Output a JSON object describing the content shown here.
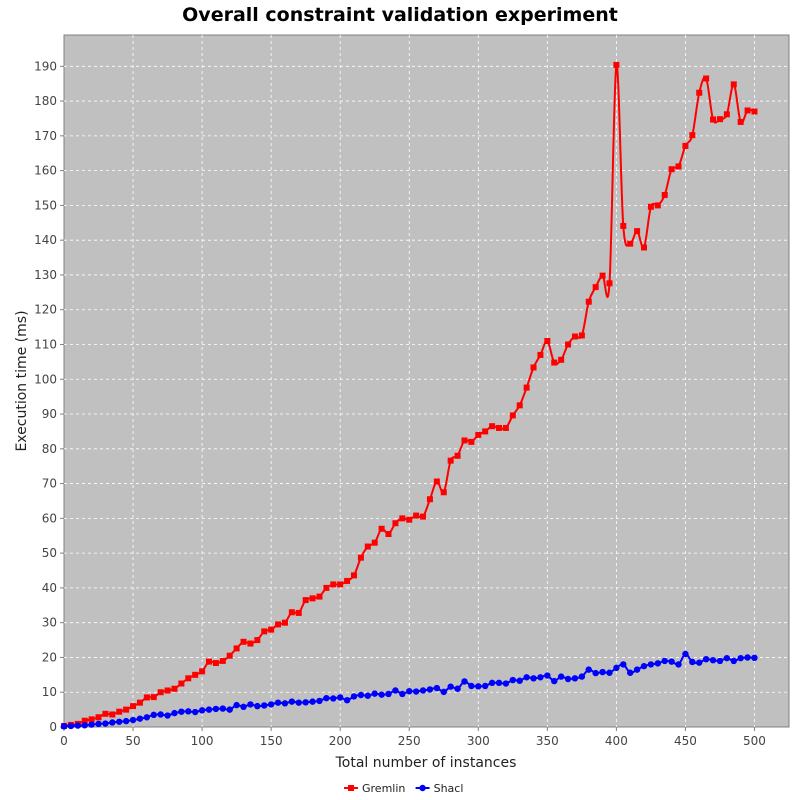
{
  "chart_data": {
    "type": "line",
    "title": "Overall constraint validation experiment",
    "xlabel": "Total number of instances",
    "ylabel": "Execution time (ms)",
    "xlim": [
      0,
      525
    ],
    "ylim": [
      0,
      199
    ],
    "xticks": [
      0,
      50,
      100,
      150,
      200,
      250,
      300,
      350,
      400,
      450,
      500
    ],
    "yticks": [
      0,
      10,
      20,
      30,
      40,
      50,
      60,
      70,
      80,
      90,
      100,
      110,
      120,
      130,
      140,
      150,
      160,
      170,
      180,
      190
    ],
    "grid": true,
    "legend_position": "bottom",
    "plot_background": "#c0c0c0",
    "x": [
      0,
      5,
      10,
      15,
      20,
      25,
      30,
      35,
      40,
      45,
      50,
      55,
      60,
      65,
      70,
      75,
      80,
      85,
      90,
      95,
      100,
      105,
      110,
      115,
      120,
      125,
      130,
      135,
      140,
      145,
      150,
      155,
      160,
      165,
      170,
      175,
      180,
      185,
      190,
      195,
      200,
      205,
      210,
      215,
      220,
      225,
      230,
      235,
      240,
      245,
      250,
      255,
      260,
      265,
      270,
      275,
      280,
      285,
      290,
      295,
      300,
      305,
      310,
      315,
      320,
      325,
      330,
      335,
      340,
      345,
      350,
      355,
      360,
      365,
      370,
      375,
      380,
      385,
      390,
      395,
      400,
      405,
      410,
      415,
      420,
      425,
      430,
      435,
      440,
      445,
      450,
      455,
      460,
      465,
      470,
      475,
      480,
      485,
      490,
      495,
      500
    ],
    "series": [
      {
        "name": "Gremlin",
        "color": "#ff0000",
        "marker": "square",
        "values": [
          0.3,
          0.6,
          0.9,
          1.8,
          2.2,
          2.8,
          3.8,
          3.6,
          4.4,
          5.0,
          6.0,
          7.0,
          8.5,
          8.6,
          10.0,
          10.5,
          11.0,
          12.5,
          14.0,
          15.0,
          16.0,
          18.8,
          18.4,
          19.0,
          20.5,
          22.6,
          24.5,
          24.0,
          25.0,
          27.5,
          28.0,
          29.5,
          30.0,
          33.0,
          32.8,
          36.5,
          37.0,
          37.5,
          40.0,
          41.0,
          41.0,
          42.0,
          43.6,
          48.7,
          51.9,
          53.0,
          57.0,
          55.5,
          58.6,
          60.0,
          59.6,
          60.8,
          60.5,
          65.5,
          70.6,
          67.5,
          76.6,
          78.0,
          82.4,
          82.0,
          84.0,
          85.0,
          86.5,
          86.0,
          86.0,
          89.6,
          92.5,
          97.6,
          103.4,
          107.0,
          111.0,
          104.8,
          105.6,
          110.0,
          112.3,
          112.6,
          122.3,
          126.5,
          129.8,
          127.6,
          190.4,
          144.1,
          139.0,
          142.6,
          137.9,
          149.6,
          150.0,
          153.0,
          160.4,
          161.2,
          167.1,
          170.2,
          182.4,
          186.5,
          174.7,
          174.8,
          176.2,
          184.8,
          174.0,
          177.3,
          177.0
        ]
      },
      {
        "name": "Shacl",
        "color": "#0000ff",
        "marker": "circle",
        "values": [
          0.2,
          0.3,
          0.4,
          0.5,
          0.7,
          0.9,
          1.0,
          1.3,
          1.5,
          1.7,
          2.0,
          2.4,
          2.8,
          3.5,
          3.6,
          3.3,
          4.0,
          4.4,
          4.5,
          4.3,
          4.8,
          5.0,
          5.2,
          5.3,
          5.0,
          6.3,
          5.8,
          6.5,
          6.0,
          6.2,
          6.5,
          7.0,
          6.8,
          7.3,
          7.0,
          7.1,
          7.3,
          7.5,
          8.3,
          8.2,
          8.5,
          7.7,
          8.8,
          9.2,
          9.0,
          9.6,
          9.3,
          9.5,
          10.5,
          9.5,
          10.3,
          10.2,
          10.5,
          10.8,
          11.2,
          10.1,
          11.6,
          11.0,
          13.1,
          11.8,
          11.7,
          11.8,
          12.7,
          12.7,
          12.5,
          13.5,
          13.3,
          14.3,
          14.0,
          14.3,
          14.8,
          13.2,
          14.5,
          13.8,
          14.0,
          14.5,
          16.5,
          15.5,
          15.8,
          15.6,
          17.0,
          18.0,
          15.6,
          16.5,
          17.5,
          18.0,
          18.3,
          19.0,
          18.8,
          18.0,
          21.0,
          18.7,
          18.5,
          19.5,
          19.2,
          19.0,
          19.8,
          19.0,
          19.8,
          20.0,
          19.9
        ]
      }
    ]
  }
}
